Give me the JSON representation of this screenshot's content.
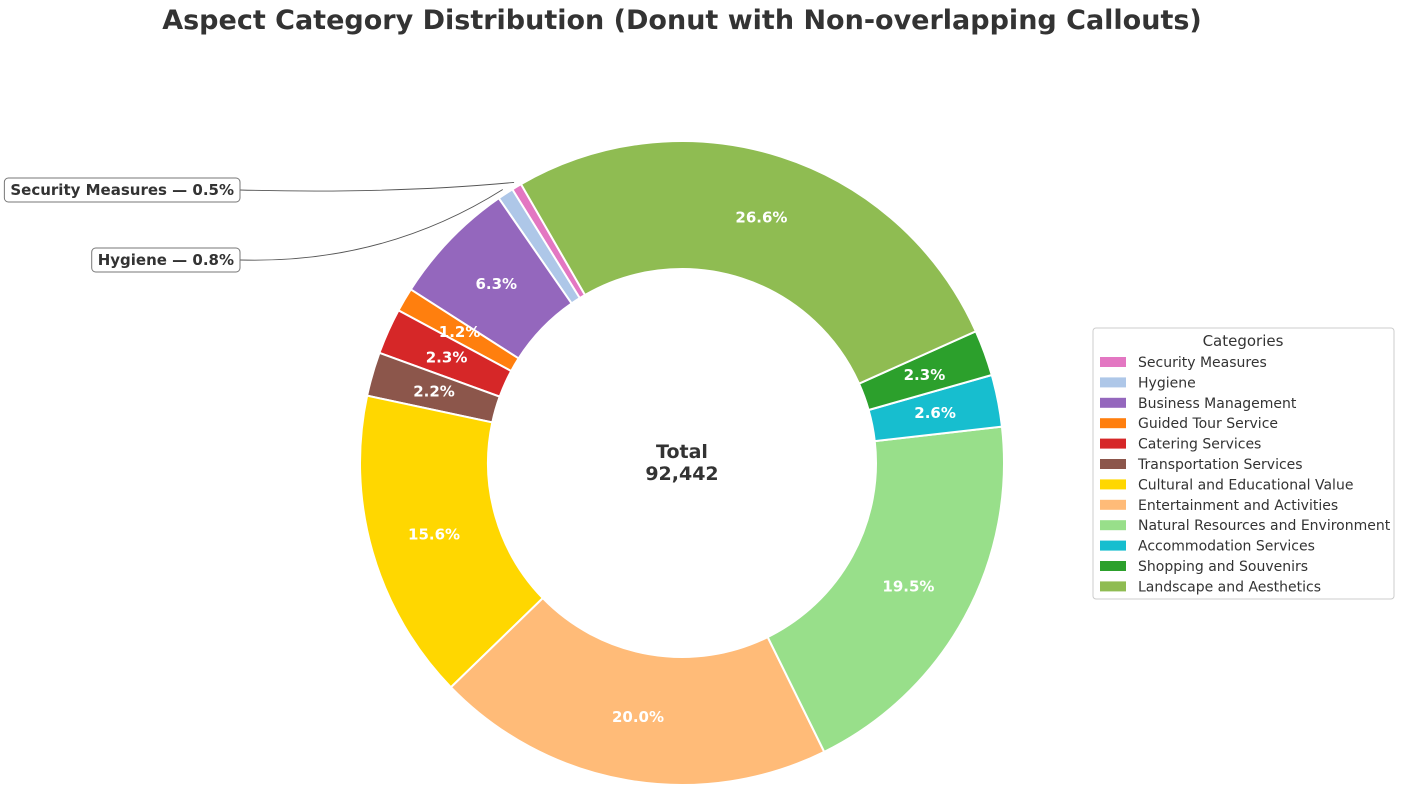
{
  "chart_data": {
    "type": "pie",
    "subtype": "donut",
    "title": "Aspect Category Distribution (Donut with Non-overlapping Callouts)",
    "center": {
      "title": "Total",
      "value": "92,442"
    },
    "categories": [
      "Security Measures",
      "Hygiene",
      "Business Management",
      "Guided Tour Service",
      "Catering Services",
      "Transportation Services",
      "Cultural and Educational Value",
      "Entertainment and Activities",
      "Natural Resources and Environment",
      "Accommodation Services",
      "Shopping and Souvenirs",
      "Landscape and Aesthetics"
    ],
    "values": [
      0.5,
      0.8,
      6.3,
      1.2,
      2.3,
      2.2,
      15.6,
      20.0,
      19.5,
      2.6,
      2.3,
      26.6
    ],
    "value_unit": "%",
    "pct_labels": [
      "",
      "",
      "6.3%",
      "1.2%",
      "2.3%",
      "2.2%",
      "15.6%",
      "20.0%",
      "19.5%",
      "2.6%",
      "2.3%",
      "26.6%"
    ],
    "colors": [
      "#e377c2",
      "#aec7e8",
      "#9467bd",
      "#ff7f0e",
      "#d62728",
      "#8c564b",
      "#ffd700",
      "#ffbb78",
      "#98df8a",
      "#17becf",
      "#2ca02c",
      "#8fbc52"
    ],
    "callouts": [
      {
        "category": "Security Measures",
        "text": "Security Measures — 0.5%"
      },
      {
        "category": "Hygiene",
        "text": "Hygiene — 0.8%"
      }
    ],
    "legend": {
      "title": "Categories",
      "placement": "right"
    }
  }
}
